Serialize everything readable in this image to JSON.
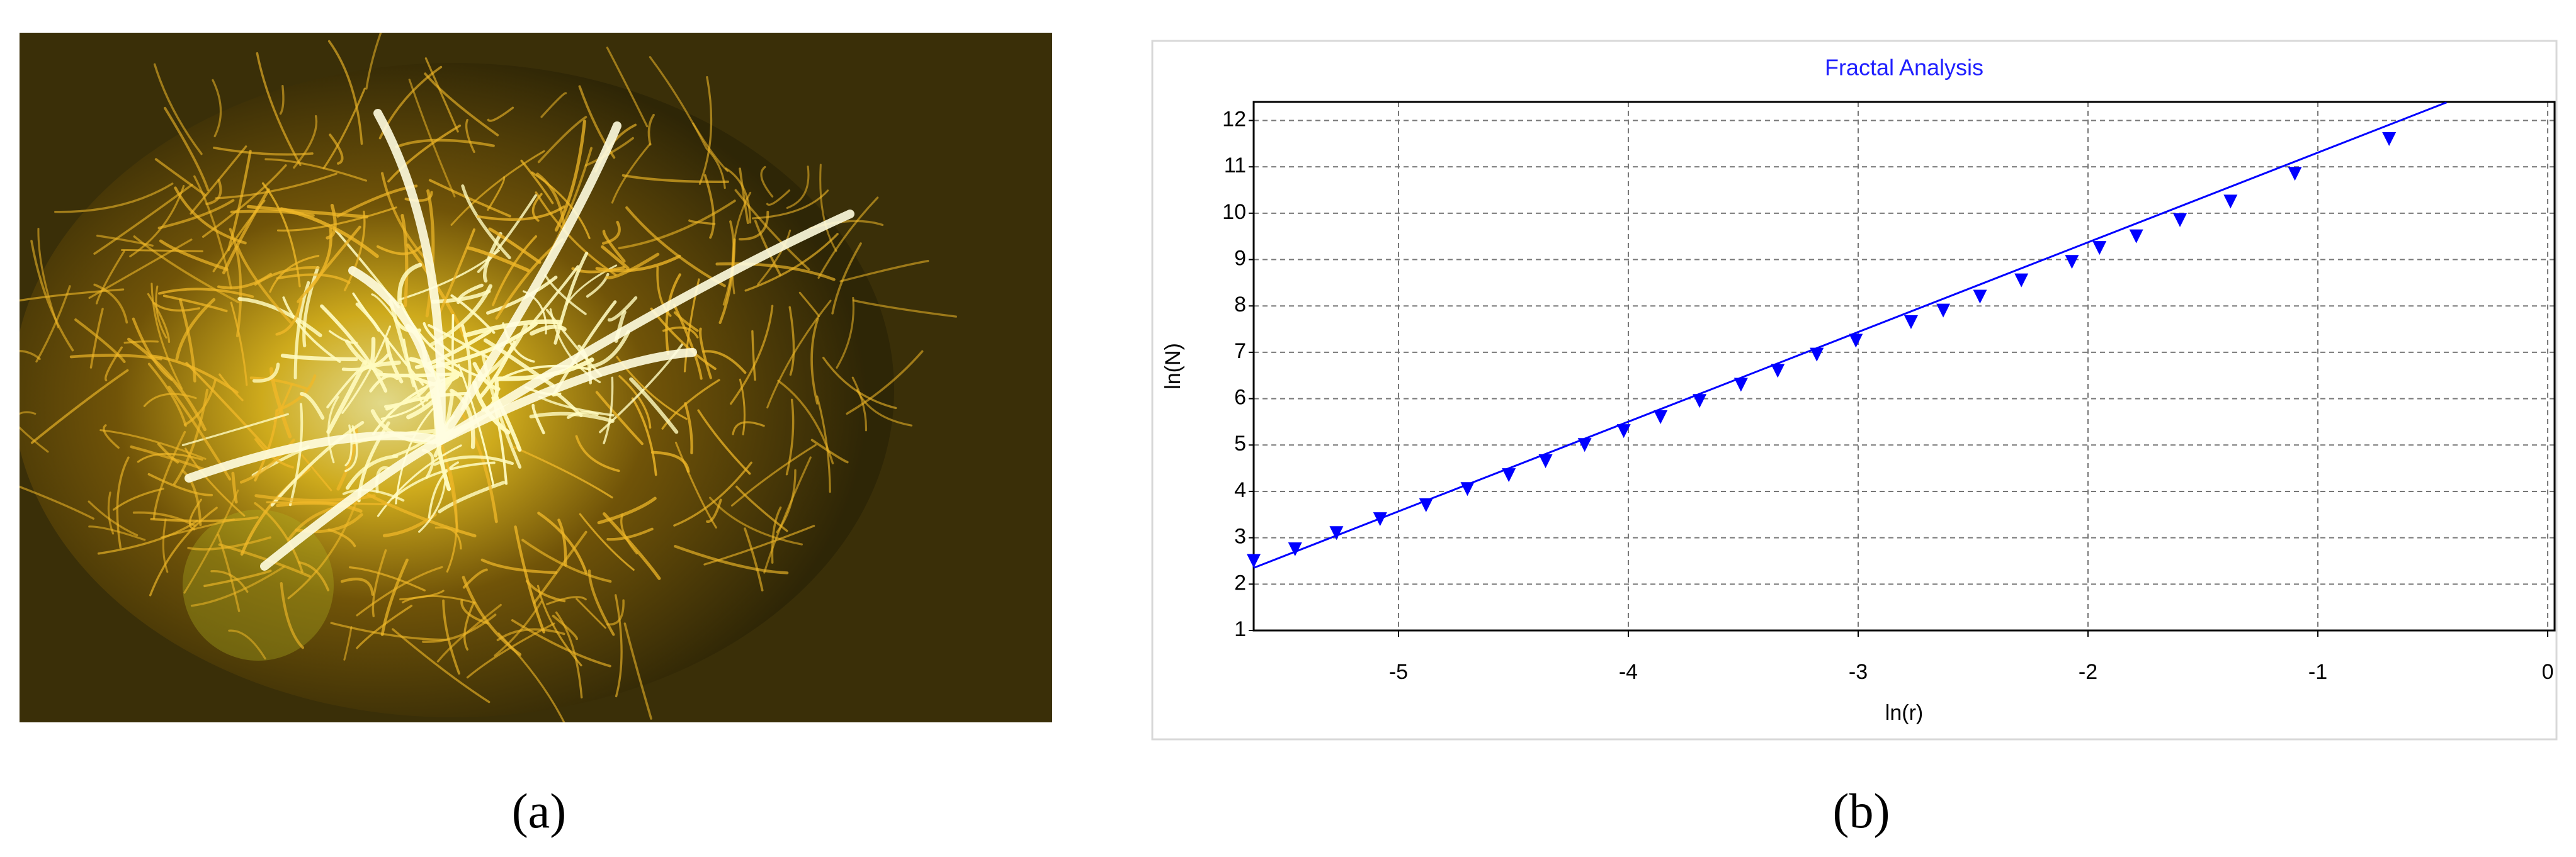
{
  "chart_data": {
    "type": "scatter",
    "title": "Fractal Analysis",
    "x_label": "ln(r)",
    "y_label": "ln(N)",
    "xlim": [
      -5.63,
      0.03
    ],
    "ylim": [
      1,
      12.4
    ],
    "xticks": [
      -5,
      -4,
      -3,
      -2,
      -1,
      0
    ],
    "yticks": [
      1,
      2,
      3,
      4,
      5,
      6,
      7,
      8,
      9,
      10,
      11,
      12
    ],
    "grid": true,
    "series": [
      {
        "color": "#0000ff",
        "x": [
          -5.63,
          -5.45,
          -5.27,
          -5.08,
          -4.88,
          -4.7,
          -4.52,
          -4.36,
          -4.19,
          -4.02,
          -3.86,
          -3.69,
          -3.51,
          -3.35,
          -3.18,
          -3.01,
          -2.77,
          -2.63,
          -2.47,
          -2.29,
          -2.07,
          -1.95,
          -1.79,
          -1.6,
          -1.38,
          -1.1,
          -0.69
        ],
        "values": [
          2.5,
          2.75,
          3.1,
          3.4,
          3.7,
          4.05,
          4.35,
          4.65,
          5.0,
          5.3,
          5.6,
          5.95,
          6.3,
          6.6,
          6.95,
          7.25,
          7.65,
          7.9,
          8.2,
          8.55,
          8.95,
          9.25,
          9.5,
          9.85,
          10.25,
          10.85,
          11.6
        ]
      }
    ],
    "fit": {
      "color": "#0000ff",
      "x": [
        -5.63,
        -0.44
      ],
      "values": [
        2.35,
        12.39
      ]
    }
  },
  "captions": [
    "(a)",
    "(b)"
  ]
}
